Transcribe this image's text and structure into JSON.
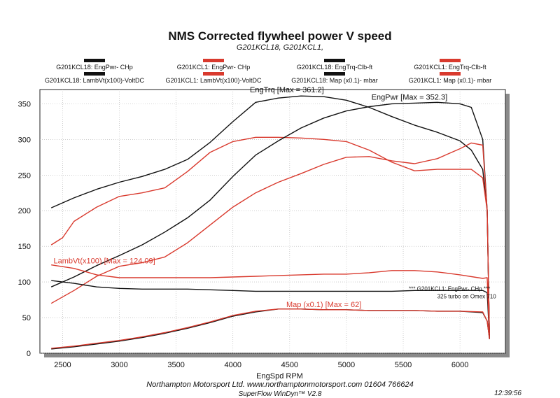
{
  "chart_data": {
    "type": "line",
    "title": "NMS Corrected flywheel power V speed",
    "subtitle": "G201KCL18, G201KCL1,",
    "xlabel": "EngSpd  RPM",
    "ylabel": "",
    "xlim": [
      2300,
      6400
    ],
    "ylim": [
      0,
      370
    ],
    "xticks": [
      2500,
      3000,
      3500,
      4000,
      4500,
      5000,
      5500,
      6000
    ],
    "yticks": [
      0,
      50,
      100,
      150,
      200,
      250,
      300,
      350
    ],
    "grid": true,
    "legend": [
      {
        "label": "G201KCL18: EngPwr- CHp",
        "color": "#111111"
      },
      {
        "label": "G201KCL1: EngPwr- CHp",
        "color": "#d93a2e"
      },
      {
        "label": "G201KCL18: EngTrq-Clb-ft",
        "color": "#111111"
      },
      {
        "label": "G201KCL1: EngTrq-Clb-ft",
        "color": "#d93a2e"
      },
      {
        "label": "G201KCL18: LambVt(x100)-VoltDC",
        "color": "#111111"
      },
      {
        "label": "G201KCL1: LambVt(x100)-VoltDC",
        "color": "#d93a2e"
      },
      {
        "label": "G201KCL18: Map  (x0.1)- mbar",
        "color": "#111111"
      },
      {
        "label": "G201KCL1:  Map  (x0.1)- mbar",
        "color": "#d93a2e"
      }
    ],
    "annotations": [
      {
        "text": "EngTrq [Max = 361.2]",
        "x": 4150,
        "y": 366,
        "color": "#111111"
      },
      {
        "text": "EngPwr [Max = 352.3]",
        "x": 5220,
        "y": 356,
        "color": "#111111"
      },
      {
        "text": "LambVt(x100) [Max = 124.09]",
        "x": 2420,
        "y": 126,
        "color": "#d93a2e"
      },
      {
        "text": "Map  (x0.1) [Max = 62]",
        "x": 4470,
        "y": 65,
        "color": "#d93a2e"
      },
      {
        "text": "*** G201KCL1: EngPwr- CHp  ***",
        "x": 5550,
        "y": 88,
        "color": "#111111"
      },
      {
        "text": "325 turbo on Omex 710",
        "x": 5800,
        "y": 77,
        "color": "#111111"
      }
    ],
    "series": [
      {
        "name": "G201KCL18: EngTrq-Clb-ft",
        "color": "#111111",
        "x": [
          2400,
          2600,
          2800,
          3000,
          3200,
          3400,
          3600,
          3800,
          4000,
          4200,
          4400,
          4600,
          4800,
          5000,
          5200,
          5400,
          5600,
          5800,
          6000,
          6100,
          6200,
          6240,
          6260
        ],
        "y": [
          204,
          218,
          230,
          240,
          248,
          258,
          272,
          296,
          325,
          352,
          358,
          361,
          360,
          355,
          345,
          332,
          320,
          310,
          298,
          285,
          258,
          200,
          20
        ]
      },
      {
        "name": "G201KCL1: EngTrq-Clb-ft",
        "color": "#d93a2e",
        "x": [
          2400,
          2500,
          2600,
          2800,
          3000,
          3200,
          3400,
          3600,
          3800,
          4000,
          4200,
          4400,
          4600,
          4800,
          5000,
          5200,
          5400,
          5600,
          5800,
          6000,
          6100,
          6200,
          6240,
          6260
        ],
        "y": [
          152,
          162,
          185,
          205,
          220,
          225,
          232,
          255,
          282,
          297,
          303,
          303,
          302,
          300,
          297,
          285,
          268,
          256,
          258,
          258,
          258,
          246,
          200,
          20
        ]
      },
      {
        "name": "G201KCL18: EngPwr- CHp",
        "color": "#111111",
        "x": [
          2400,
          2600,
          2800,
          3000,
          3200,
          3400,
          3600,
          3800,
          4000,
          4200,
          4400,
          4600,
          4800,
          5000,
          5200,
          5400,
          5600,
          5800,
          6000,
          6100,
          6200,
          6240,
          6260
        ],
        "y": [
          93,
          107,
          123,
          137,
          152,
          170,
          190,
          215,
          248,
          278,
          298,
          316,
          330,
          340,
          346,
          350,
          351,
          352,
          350,
          345,
          300,
          200,
          20
        ]
      },
      {
        "name": "G201KCL1: EngPwr- CHp",
        "color": "#d93a2e",
        "x": [
          2400,
          2600,
          2800,
          3000,
          3200,
          3400,
          3600,
          3800,
          4000,
          4200,
          4400,
          4600,
          4800,
          5000,
          5200,
          5400,
          5600,
          5800,
          6000,
          6100,
          6200,
          6240,
          6260
        ],
        "y": [
          70,
          88,
          108,
          122,
          127,
          135,
          155,
          180,
          205,
          225,
          240,
          252,
          265,
          275,
          276,
          270,
          266,
          273,
          287,
          295,
          292,
          200,
          20
        ]
      },
      {
        "name": "G201KCL18: LambVt(x100)-VoltDC",
        "color": "#111111",
        "x": [
          2400,
          2600,
          2800,
          3000,
          3200,
          3400,
          3600,
          3800,
          4000,
          4200,
          4400,
          4600,
          4800,
          5000,
          5200,
          5400,
          5600,
          5800,
          6000,
          6200,
          6240,
          6260
        ],
        "y": [
          102,
          98,
          93,
          91,
          90,
          90,
          90,
          89,
          88,
          87,
          87,
          87,
          87,
          87,
          87,
          87,
          88,
          88,
          88,
          88,
          85,
          20
        ]
      },
      {
        "name": "G201KCL1: LambVt(x100)-VoltDC",
        "color": "#d93a2e",
        "x": [
          2400,
          2600,
          2800,
          3000,
          3200,
          3400,
          3600,
          3800,
          4000,
          4200,
          4400,
          4600,
          4800,
          5000,
          5200,
          5400,
          5600,
          5800,
          6000,
          6200,
          6240,
          6260
        ],
        "y": [
          124,
          119,
          110,
          106,
          106,
          106,
          106,
          106,
          107,
          108,
          109,
          110,
          111,
          111,
          113,
          116,
          116,
          114,
          110,
          105,
          106,
          20
        ]
      },
      {
        "name": "G201KCL18: Map  (x0.1)- mbar",
        "color": "#111111",
        "x": [
          2400,
          2600,
          2800,
          3000,
          3200,
          3400,
          3600,
          3800,
          4000,
          4200,
          4400,
          4600,
          4800,
          5000,
          5200,
          5400,
          5600,
          5800,
          6000,
          6200,
          6240,
          6260
        ],
        "y": [
          6,
          9,
          13,
          17,
          22,
          28,
          35,
          43,
          52,
          58,
          62,
          62,
          61,
          61,
          60,
          60,
          60,
          59,
          59,
          57,
          45,
          20
        ]
      },
      {
        "name": "G201KCL1:  Map  (x0.1)- mbar",
        "color": "#d93a2e",
        "x": [
          2400,
          2600,
          2800,
          3000,
          3200,
          3400,
          3600,
          3800,
          4000,
          4200,
          4400,
          4600,
          4800,
          5000,
          5200,
          5400,
          5600,
          5800,
          6000,
          6200,
          6240,
          6260
        ],
        "y": [
          7,
          10,
          14,
          18,
          23,
          29,
          36,
          44,
          53,
          59,
          62,
          62,
          61,
          61,
          60,
          60,
          60,
          59,
          59,
          58,
          45,
          20
        ]
      }
    ]
  },
  "footer": {
    "line1": "Northampton Motorsport Ltd. www.northamptonmotorsport.com 01604 766624",
    "line2": "SuperFlow WinDyn™ V2.8",
    "time": "12:39:56"
  }
}
